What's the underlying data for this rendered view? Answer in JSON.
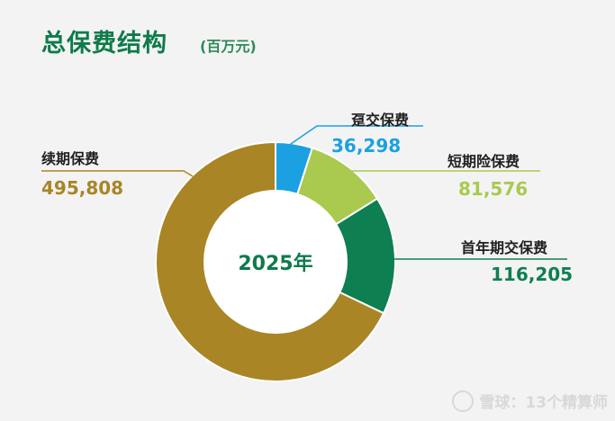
{
  "header": {
    "title": "总保费结构",
    "unit": "(百万元)"
  },
  "watermark": {
    "text": "雪球：13个精算师"
  },
  "chart_data": {
    "type": "donut",
    "title": "总保费结构",
    "unit": "(百万元)",
    "center_label": "2025年",
    "start_angle_deg": 0,
    "slices": [
      {
        "name": "趸交保费",
        "value": 36298,
        "value_label": "36,298",
        "color": "#1ba1e2"
      },
      {
        "name": "短期险保费",
        "value": 81576,
        "value_label": "81,576",
        "color": "#a9c94f"
      },
      {
        "name": "首年期交保费",
        "value": 116205,
        "value_label": "116,205",
        "color": "#0e7f50"
      },
      {
        "name": "续期保费",
        "value": 495808,
        "value_label": "495,808",
        "color": "#a98526"
      }
    ]
  }
}
